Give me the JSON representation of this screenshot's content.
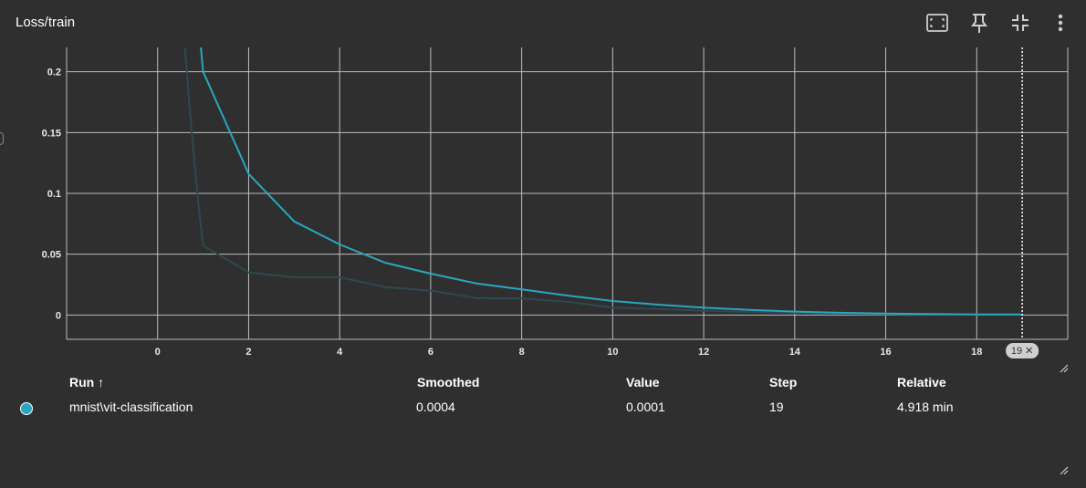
{
  "card": {
    "title": "Loss/train",
    "toolbar": [
      "fit-domain-icon",
      "pin-icon",
      "collapse-icon",
      "more-vert-icon"
    ]
  },
  "chart_data": {
    "type": "line",
    "title": "Loss/train",
    "xlabel": "",
    "ylabel": "",
    "x_ticks": [
      "0",
      "2",
      "4",
      "6",
      "8",
      "10",
      "12",
      "14",
      "16",
      "18"
    ],
    "y_ticks": [
      "0",
      "0.05",
      "0.1",
      "0.15",
      "0.2"
    ],
    "xlim": [
      -2,
      20
    ],
    "ylim": [
      -0.02,
      0.22
    ],
    "grid": true,
    "series": [
      {
        "name": "mnist\\vit-classification",
        "color": "#2aa6c0",
        "values_smoothed": [
          {
            "x": 0.95,
            "y": 0.22
          },
          {
            "x": 1,
            "y": 0.2
          },
          {
            "x": 2,
            "y": 0.116
          },
          {
            "x": 3,
            "y": 0.077
          },
          {
            "x": 4,
            "y": 0.058
          },
          {
            "x": 5,
            "y": 0.043
          },
          {
            "x": 6,
            "y": 0.034
          },
          {
            "x": 7,
            "y": 0.026
          },
          {
            "x": 8,
            "y": 0.021
          },
          {
            "x": 9,
            "y": 0.016
          },
          {
            "x": 10,
            "y": 0.0115
          },
          {
            "x": 11,
            "y": 0.0085
          },
          {
            "x": 12,
            "y": 0.006
          },
          {
            "x": 13,
            "y": 0.0042
          },
          {
            "x": 14,
            "y": 0.0028
          },
          {
            "x": 15,
            "y": 0.0018
          },
          {
            "x": 16,
            "y": 0.0012
          },
          {
            "x": 17,
            "y": 0.0008
          },
          {
            "x": 18,
            "y": 0.0005
          },
          {
            "x": 19,
            "y": 0.0004
          }
        ],
        "values_raw": [
          {
            "x": 0.6,
            "y": 0.22
          },
          {
            "x": 0.75,
            "y": 0.15
          },
          {
            "x": 0.9,
            "y": 0.09
          },
          {
            "x": 1,
            "y": 0.057
          },
          {
            "x": 2,
            "y": 0.035
          },
          {
            "x": 3,
            "y": 0.031
          },
          {
            "x": 4,
            "y": 0.031
          },
          {
            "x": 5,
            "y": 0.023
          },
          {
            "x": 6,
            "y": 0.02
          },
          {
            "x": 7,
            "y": 0.014
          },
          {
            "x": 8,
            "y": 0.0135
          },
          {
            "x": 9,
            "y": 0.011
          },
          {
            "x": 10,
            "y": 0.006
          },
          {
            "x": 11,
            "y": 0.005
          },
          {
            "x": 12,
            "y": 0.0035
          },
          {
            "x": 13,
            "y": 0.0025
          },
          {
            "x": 14,
            "y": 0.0018
          },
          {
            "x": 15,
            "y": 0.001
          },
          {
            "x": 16,
            "y": 0.0007
          },
          {
            "x": 17,
            "y": 0.0004
          },
          {
            "x": 18,
            "y": 0.0002
          },
          {
            "x": 19,
            "y": 0.0001
          }
        ]
      }
    ],
    "cursor_step": 19,
    "cursor_label": "19 ✕"
  },
  "runs_table": {
    "headers": {
      "run": "Run ↑",
      "smoothed": "Smoothed",
      "value": "Value",
      "step": "Step",
      "relative": "Relative"
    },
    "rows": [
      {
        "run": "mnist\\vit-classification",
        "smoothed": "0.0004",
        "value": "0.0001",
        "step": "19",
        "relative": "4.918 min",
        "color": "#2aa6c0"
      }
    ]
  }
}
